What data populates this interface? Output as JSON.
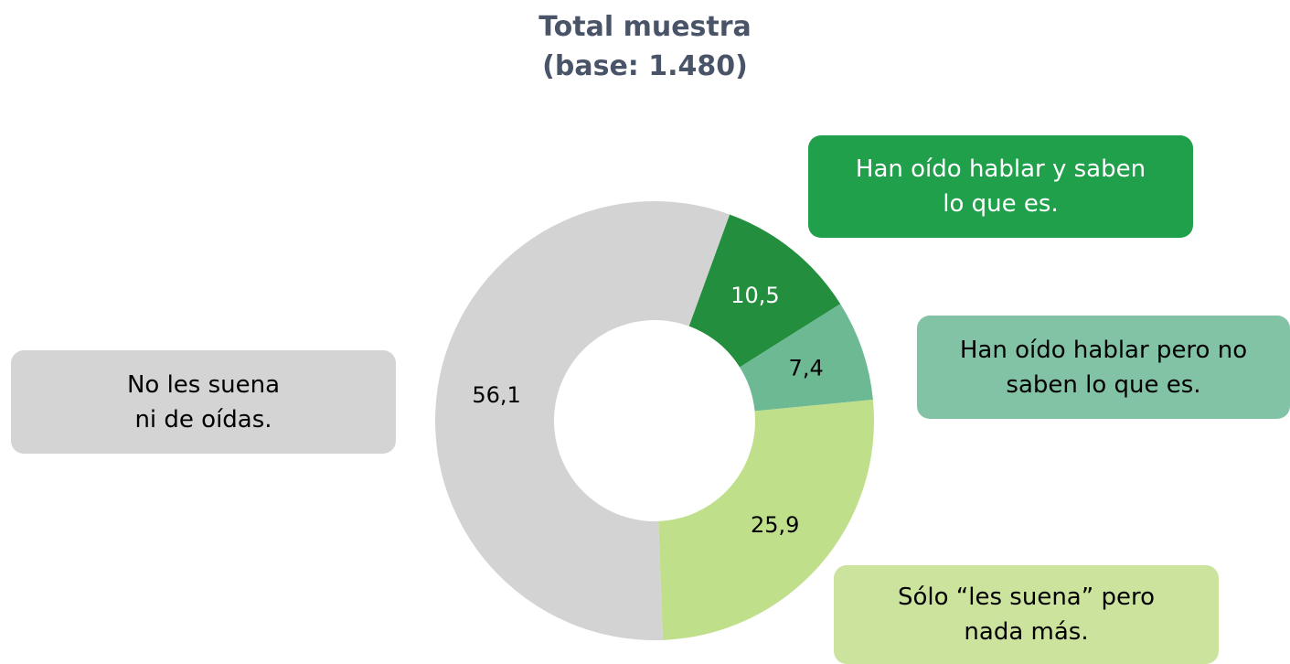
{
  "chart_data": {
    "type": "donut",
    "title": "Total muestra",
    "subtitle": "(base: 1.480)",
    "categories": [
      "Han oído hablar y saben\nlo que es.",
      "Han oído hablar pero no\nsaben lo que es.",
      "Sólo “les suena” pero\nnada más.",
      "No les suena\nni de oídas."
    ],
    "values": [
      10.5,
      7.4,
      25.9,
      56.1
    ],
    "value_labels": [
      "10,5",
      "7,4",
      "25,9",
      "56,1"
    ],
    "colors": [
      "#238f3e",
      "#6cb994",
      "#c0df8a",
      "#d3d3d3"
    ],
    "label_colors": [
      "#21a04b",
      "#82c3a5",
      "#cbe39d",
      "#d4d4d4"
    ],
    "label_text_colors": [
      "#ffffff",
      "#000000",
      "#000000",
      "#000000"
    ],
    "value_text_colors": [
      "#ffffff",
      "#000000",
      "#000000",
      "#000000"
    ]
  }
}
